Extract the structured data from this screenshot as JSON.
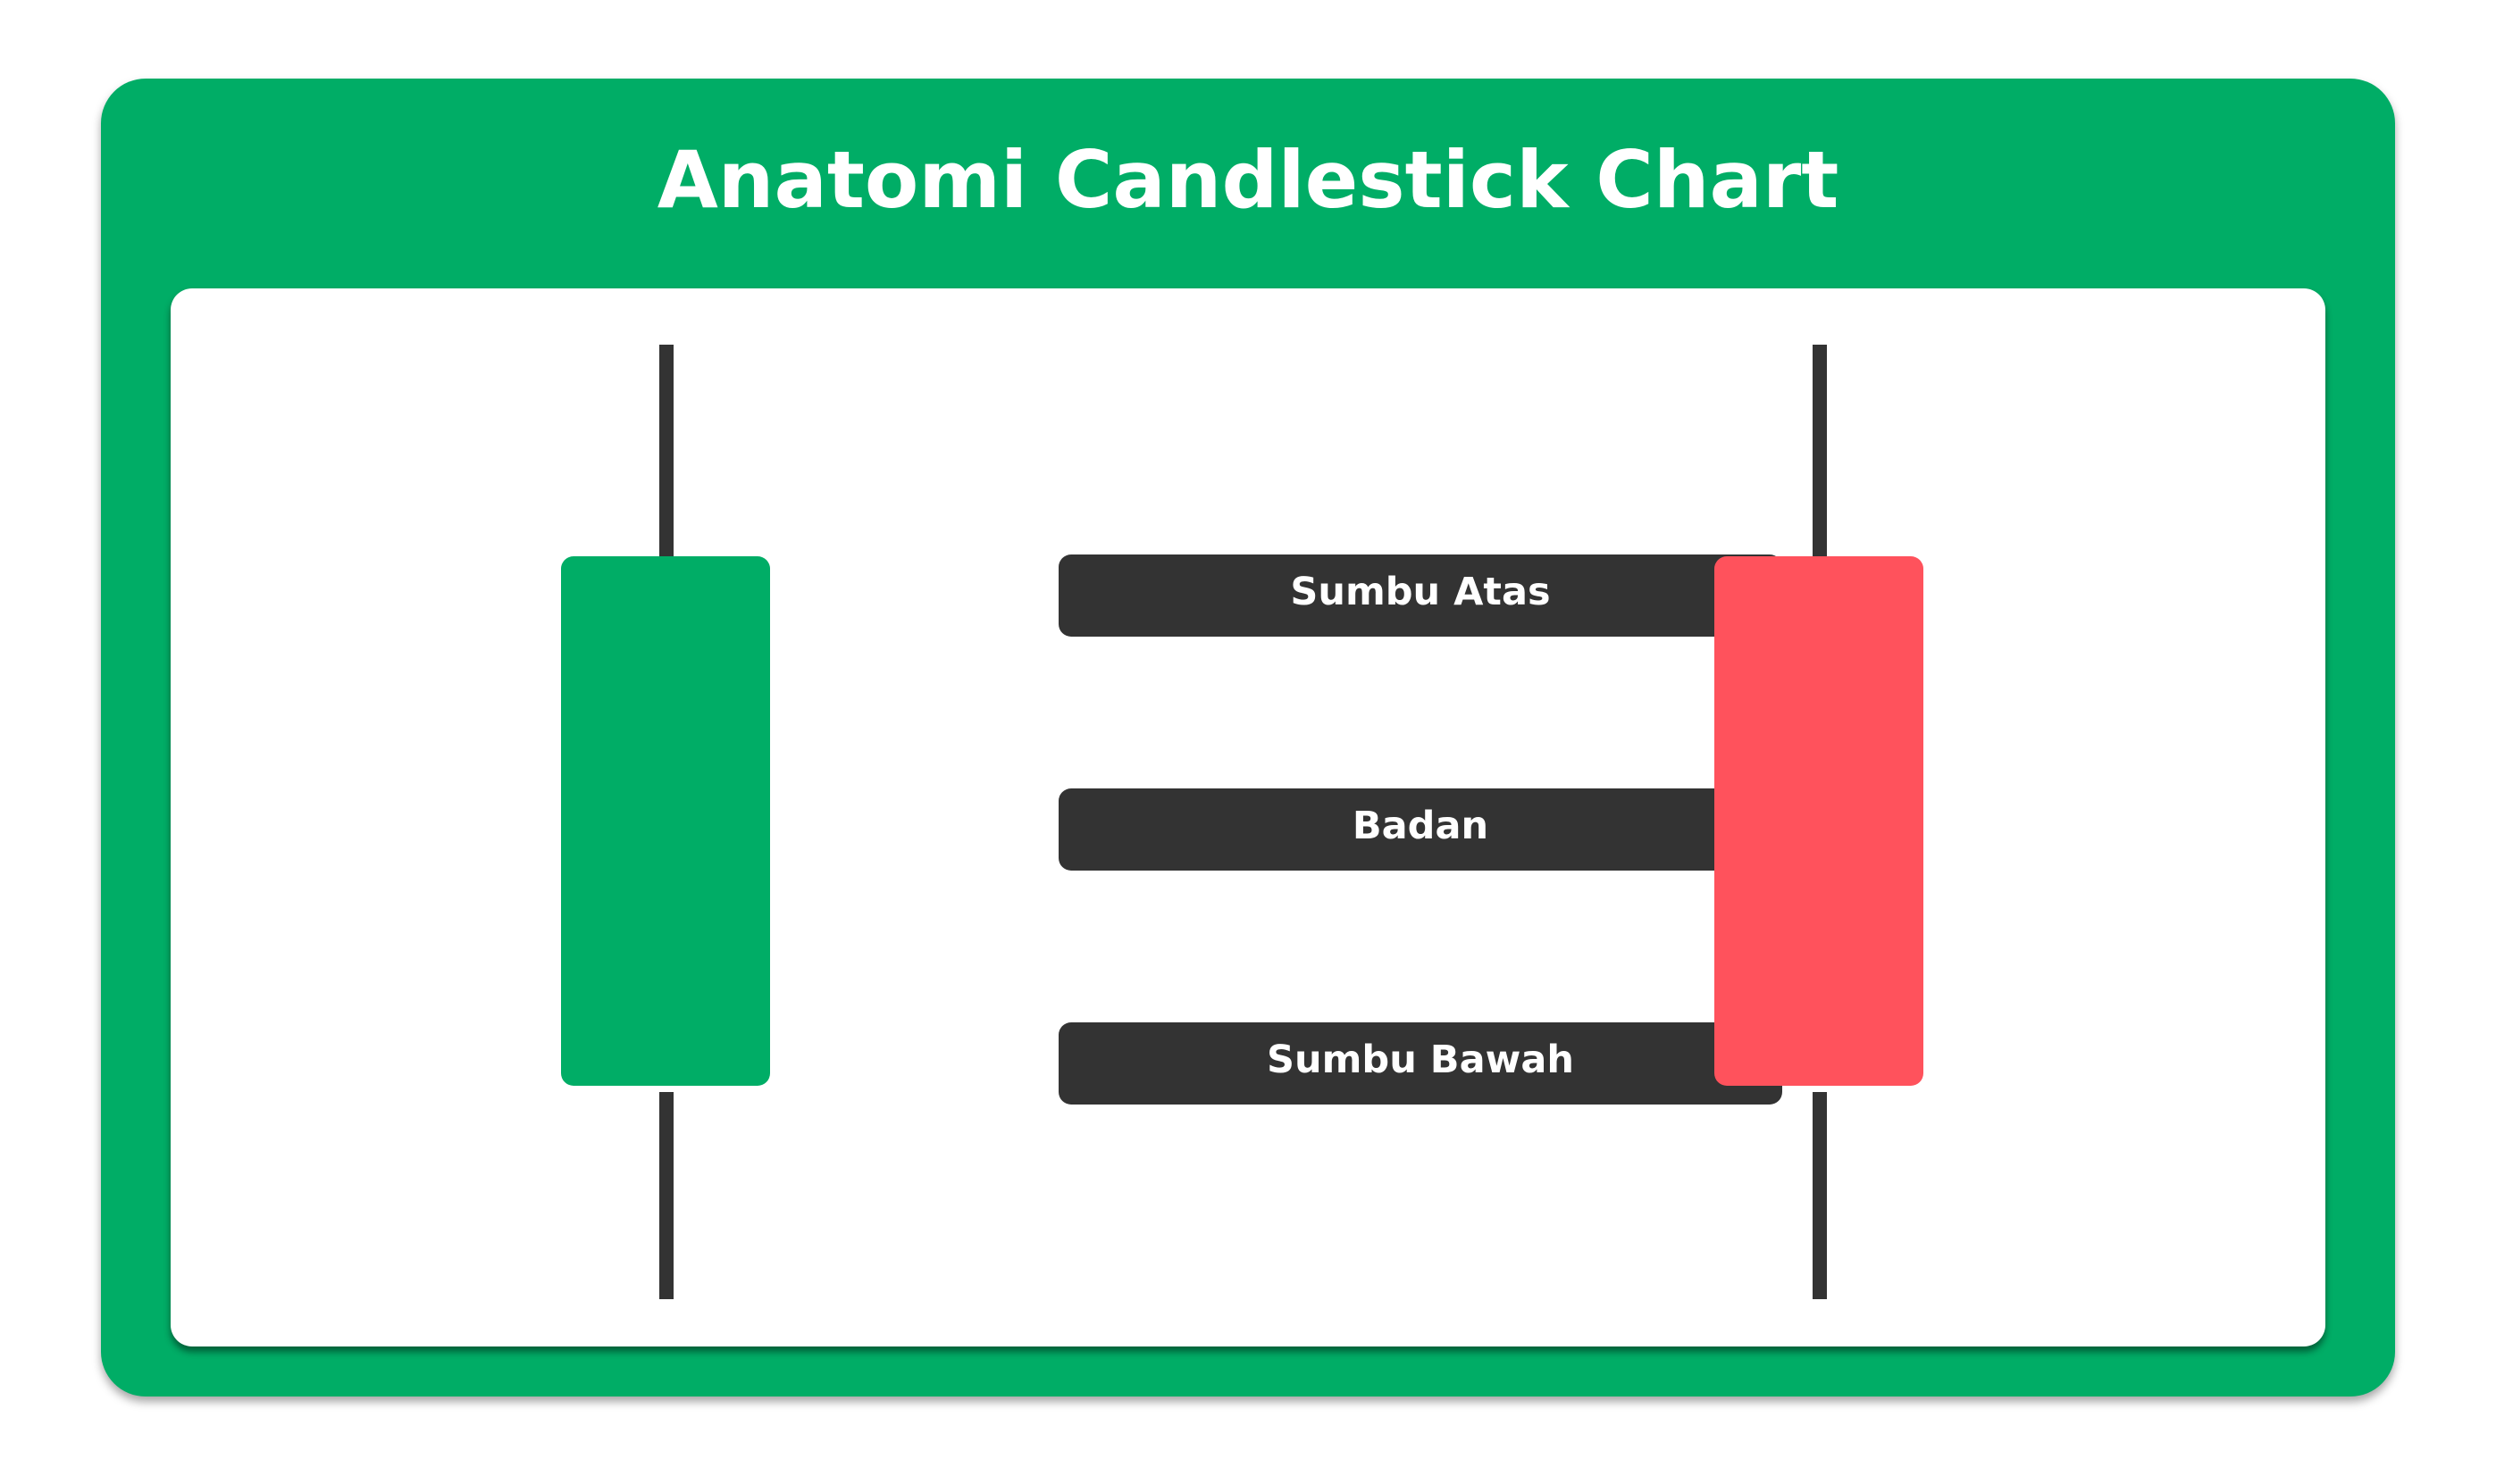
{
  "title": "Anatomi Candlestick Chart",
  "colors": {
    "frame": "#00AD66",
    "bullish_body": "#00AD66",
    "bearish_body": "#FF525C",
    "wick": "#333333",
    "label_bg": "#333333",
    "label_text": "#FFFFFF",
    "panel": "#FFFFFF"
  },
  "candles": [
    {
      "kind": "bullish",
      "color": "#00AD66"
    },
    {
      "kind": "bearish",
      "color": "#FF525C"
    }
  ],
  "labels": {
    "upper_wick": "Sumbu Atas",
    "body": "Badan",
    "lower_wick": "Sumbu Bawah"
  }
}
